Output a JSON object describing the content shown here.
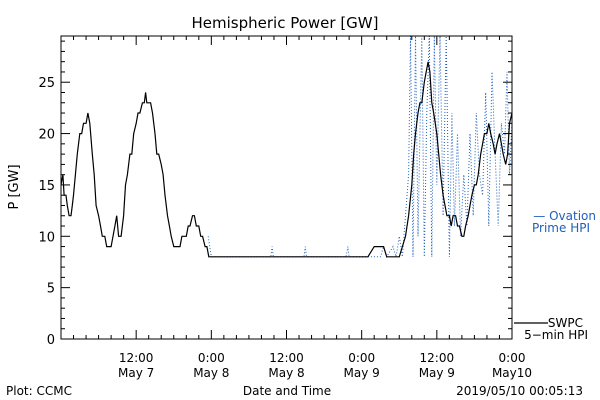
{
  "chart_data": {
    "type": "line",
    "title": "Hemispheric Power [GW]",
    "xlabel": "Date and Time",
    "ylabel": "P [GW]",
    "ylim": [
      0,
      29.5
    ],
    "yticks": [
      0,
      5,
      10,
      15,
      20,
      25
    ],
    "xlim_hours": [
      0,
      72
    ],
    "x_ticks": [
      {
        "t": 12,
        "line1": "12:00",
        "line2": "May 7"
      },
      {
        "t": 24,
        "line1": "0:00",
        "line2": "May 8"
      },
      {
        "t": 36,
        "line1": "12:00",
        "line2": "May 8"
      },
      {
        "t": 48,
        "line1": "0:00",
        "line2": "May 9"
      },
      {
        "t": 60,
        "line1": "12:00",
        "line2": "May 9"
      },
      {
        "t": 72,
        "line1": "0:00",
        "line2": "May10"
      }
    ],
    "series": [
      {
        "name": "Ovation Prime HPI",
        "legend_line1": "Ovation",
        "legend_line2": "Prime HPI",
        "legend_marker": "—",
        "color": "#1f5fbf",
        "style": "dotted",
        "points": [
          [
            23.5,
            10
          ],
          [
            24.0,
            8
          ],
          [
            30.0,
            8
          ],
          [
            33.5,
            8
          ],
          [
            33.7,
            9
          ],
          [
            33.9,
            8
          ],
          [
            38.8,
            8
          ],
          [
            39.0,
            9
          ],
          [
            39.2,
            8
          ],
          [
            45.5,
            8
          ],
          [
            45.8,
            9
          ],
          [
            46.0,
            8
          ],
          [
            50.0,
            8
          ],
          [
            51.0,
            8
          ],
          [
            51.5,
            9
          ],
          [
            52.0,
            8
          ],
          [
            53.0,
            9
          ],
          [
            53.5,
            8
          ],
          [
            54.0,
            10
          ],
          [
            54.5,
            8
          ],
          [
            55.0,
            12
          ],
          [
            55.5,
            16
          ],
          [
            55.8,
            29.5
          ],
          [
            56.2,
            8
          ],
          [
            56.6,
            29.5
          ],
          [
            57.0,
            10
          ],
          [
            57.6,
            29.5
          ],
          [
            58.0,
            8
          ],
          [
            58.4,
            22
          ],
          [
            58.8,
            29.5
          ],
          [
            59.2,
            8
          ],
          [
            59.6,
            29.5
          ],
          [
            60.0,
            15
          ],
          [
            60.5,
            29.5
          ],
          [
            61.0,
            12
          ],
          [
            61.5,
            29.5
          ],
          [
            62.0,
            8
          ],
          [
            62.4,
            22
          ],
          [
            62.8,
            11
          ],
          [
            63.3,
            20
          ],
          [
            63.8,
            10
          ],
          [
            64.3,
            16
          ],
          [
            64.8,
            11
          ],
          [
            65.3,
            20
          ],
          [
            65.8,
            12
          ],
          [
            66.3,
            22
          ],
          [
            66.8,
            16
          ],
          [
            67.3,
            14
          ],
          [
            67.8,
            24
          ],
          [
            68.3,
            11
          ],
          [
            68.8,
            26
          ],
          [
            69.3,
            18
          ],
          [
            69.8,
            11
          ],
          [
            70.3,
            21
          ],
          [
            70.8,
            18
          ],
          [
            71.2,
            26
          ],
          [
            71.6,
            16
          ],
          [
            72.0,
            21
          ]
        ]
      },
      {
        "name": "SWPC 5-min HPI",
        "legend_line1": "SWPC",
        "legend_line2": "5−min HPI",
        "legend_marker": "",
        "color": "#000000",
        "style": "solid",
        "points": [
          [
            0.0,
            15
          ],
          [
            0.3,
            16
          ],
          [
            0.5,
            14
          ],
          [
            0.8,
            14
          ],
          [
            1.0,
            13
          ],
          [
            1.3,
            12
          ],
          [
            1.6,
            12
          ],
          [
            1.8,
            13
          ],
          [
            2.0,
            14
          ],
          [
            2.3,
            16
          ],
          [
            2.6,
            18
          ],
          [
            3.0,
            20
          ],
          [
            3.3,
            20
          ],
          [
            3.6,
            21
          ],
          [
            4.0,
            21
          ],
          [
            4.3,
            22
          ],
          [
            4.6,
            21
          ],
          [
            5.0,
            18
          ],
          [
            5.3,
            16
          ],
          [
            5.6,
            13
          ],
          [
            6.0,
            12
          ],
          [
            6.3,
            11
          ],
          [
            6.6,
            10
          ],
          [
            7.0,
            10
          ],
          [
            7.3,
            9
          ],
          [
            7.6,
            9
          ],
          [
            8.0,
            9
          ],
          [
            8.3,
            10
          ],
          [
            8.6,
            11
          ],
          [
            8.9,
            12
          ],
          [
            9.2,
            10
          ],
          [
            9.6,
            10
          ],
          [
            10.0,
            12
          ],
          [
            10.3,
            15
          ],
          [
            10.6,
            16
          ],
          [
            11.0,
            18
          ],
          [
            11.3,
            18
          ],
          [
            11.6,
            20
          ],
          [
            12.0,
            21
          ],
          [
            12.3,
            22
          ],
          [
            12.6,
            22
          ],
          [
            13.0,
            23
          ],
          [
            13.3,
            23
          ],
          [
            13.5,
            24
          ],
          [
            13.7,
            23
          ],
          [
            14.0,
            23
          ],
          [
            14.3,
            23
          ],
          [
            14.6,
            22
          ],
          [
            15.0,
            20
          ],
          [
            15.3,
            18
          ],
          [
            15.6,
            18
          ],
          [
            16.0,
            17
          ],
          [
            16.3,
            16
          ],
          [
            16.6,
            14
          ],
          [
            17.0,
            12
          ],
          [
            17.3,
            11
          ],
          [
            17.6,
            10
          ],
          [
            18.0,
            9
          ],
          [
            18.3,
            9
          ],
          [
            18.6,
            9
          ],
          [
            19.0,
            9
          ],
          [
            19.3,
            10
          ],
          [
            19.6,
            10
          ],
          [
            20.0,
            10
          ],
          [
            20.3,
            11
          ],
          [
            20.6,
            11
          ],
          [
            21.0,
            12
          ],
          [
            21.3,
            12
          ],
          [
            21.6,
            11
          ],
          [
            22.0,
            11
          ],
          [
            22.3,
            10
          ],
          [
            22.6,
            10
          ],
          [
            23.0,
            9
          ],
          [
            23.3,
            9
          ],
          [
            23.6,
            8
          ],
          [
            24.0,
            8
          ],
          [
            30.0,
            8
          ],
          [
            36.0,
            8
          ],
          [
            42.0,
            8
          ],
          [
            48.0,
            8
          ],
          [
            49.0,
            8
          ],
          [
            50.0,
            9
          ],
          [
            51.0,
            9
          ],
          [
            51.5,
            9
          ],
          [
            52.0,
            8
          ],
          [
            54.0,
            8
          ],
          [
            54.5,
            9
          ],
          [
            55.0,
            10
          ],
          [
            55.5,
            12
          ],
          [
            56.0,
            15
          ],
          [
            56.3,
            18
          ],
          [
            56.6,
            20
          ],
          [
            57.0,
            22
          ],
          [
            57.3,
            23
          ],
          [
            57.6,
            23
          ],
          [
            58.0,
            25
          ],
          [
            58.3,
            26
          ],
          [
            58.6,
            27
          ],
          [
            58.9,
            26
          ],
          [
            59.2,
            23
          ],
          [
            59.5,
            22
          ],
          [
            60.0,
            20
          ],
          [
            60.3,
            18
          ],
          [
            60.6,
            16
          ],
          [
            61.0,
            14
          ],
          [
            61.3,
            13
          ],
          [
            61.6,
            12
          ],
          [
            62.0,
            12
          ],
          [
            62.3,
            11
          ],
          [
            62.6,
            12
          ],
          [
            63.0,
            12
          ],
          [
            63.3,
            11
          ],
          [
            63.6,
            11
          ],
          [
            64.0,
            10
          ],
          [
            64.3,
            10
          ],
          [
            64.6,
            11
          ],
          [
            65.0,
            12
          ],
          [
            65.3,
            13
          ],
          [
            65.6,
            14
          ],
          [
            66.0,
            15
          ],
          [
            66.3,
            15
          ],
          [
            66.6,
            16
          ],
          [
            67.0,
            18
          ],
          [
            67.3,
            19
          ],
          [
            67.6,
            20
          ],
          [
            68.0,
            20
          ],
          [
            68.3,
            21
          ],
          [
            68.6,
            20
          ],
          [
            69.0,
            19
          ],
          [
            69.3,
            18
          ],
          [
            69.6,
            19
          ],
          [
            70.0,
            20
          ],
          [
            70.3,
            19
          ],
          [
            70.6,
            18
          ],
          [
            71.0,
            17
          ],
          [
            71.3,
            18
          ],
          [
            71.6,
            21
          ],
          [
            72.0,
            22
          ]
        ]
      }
    ],
    "footer_left": "Plot: CCMC",
    "footer_right": "2019/05/10 00:05:13"
  }
}
